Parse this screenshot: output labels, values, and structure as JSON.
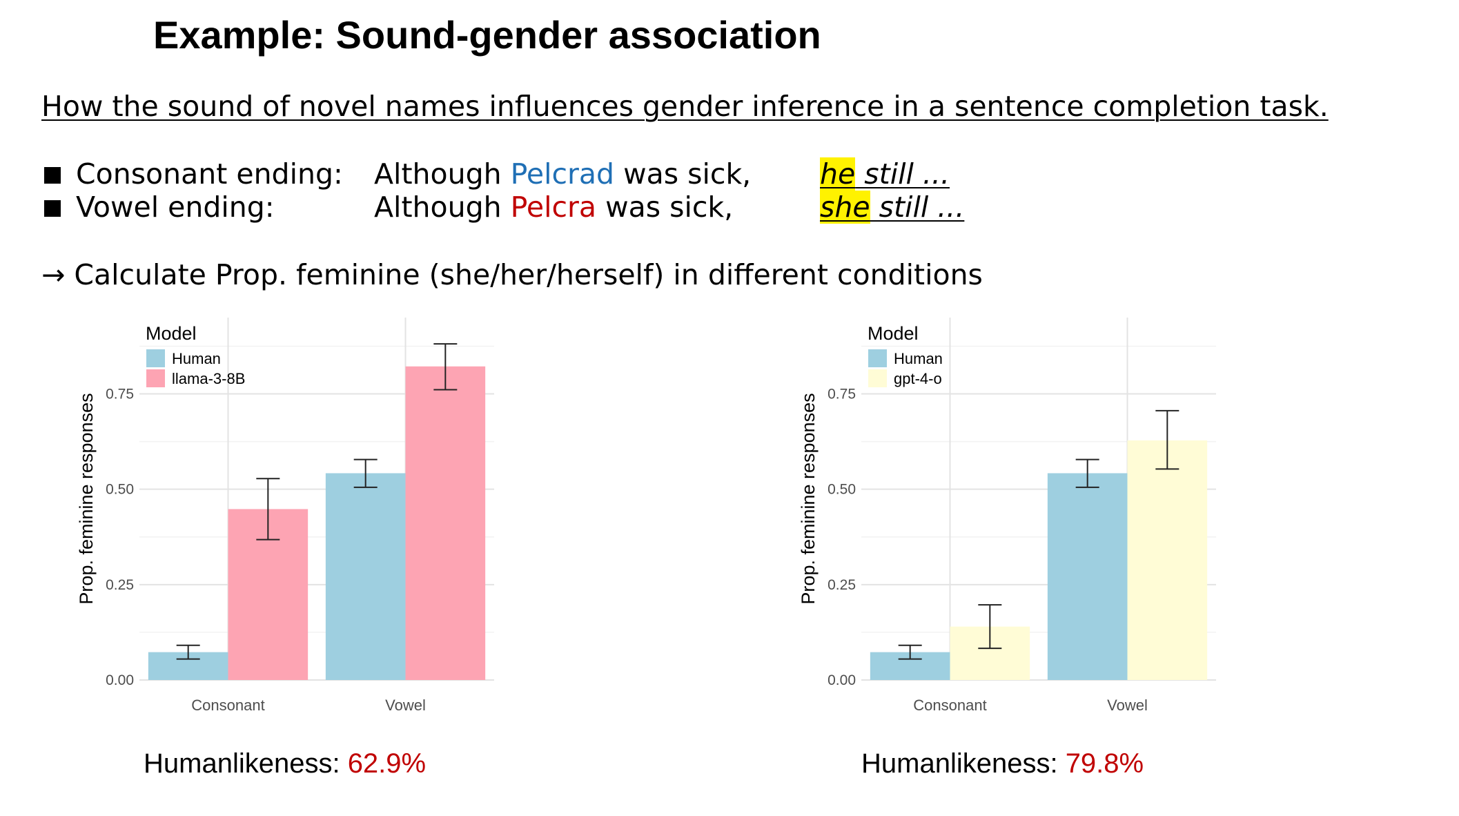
{
  "title": "Example: Sound-gender association",
  "subtitle": "How the sound of novel names influences gender inference in a sentence completion task.",
  "examples": [
    {
      "condition": "Consonant ending:",
      "pre": "Although ",
      "name": "Pelcrad",
      "post": " was sick,",
      "pronoun": "he",
      "rest": " still ...",
      "name_color": "#1f6fb5"
    },
    {
      "condition": "Vowel ending:",
      "pre": "Although ",
      "name": "Pelcra",
      "post": " was sick,",
      "pronoun": "she",
      "rest": " still ...",
      "name_color": "#c00000"
    }
  ],
  "calc_line": "→ Calculate Prop. feminine (she/her/herself) in different conditions",
  "highlight_color": "#fff200",
  "humanlikeness": [
    {
      "label": "Humanlikeness: ",
      "value": "62.9%",
      "value_color": "#c00000"
    },
    {
      "label": "Humanlikeness: ",
      "value": "79.8%",
      "value_color": "#c00000"
    }
  ],
  "chart_data": [
    {
      "type": "bar",
      "title": "",
      "xlabel": "",
      "ylabel": "Prop. feminine responses",
      "ylim": [
        0,
        0.95
      ],
      "yticks": [
        0,
        0.25,
        0.5,
        0.75
      ],
      "ytick_labels": [
        "0.00",
        "0.25",
        "0.50",
        "0.75"
      ],
      "categories": [
        "Consonant",
        "Vowel"
      ],
      "legend_title": "Model",
      "legend_position": "top-left",
      "grid": true,
      "series": [
        {
          "name": "Human",
          "color": "#9ecfe0",
          "values": [
            0.073,
            0.542
          ],
          "err_low": [
            0.055,
            0.505
          ],
          "err_high": [
            0.091,
            0.578
          ]
        },
        {
          "name": "llama-3-8B",
          "color": "#fda4b3",
          "values": [
            0.448,
            0.822
          ],
          "err_low": [
            0.368,
            0.761
          ],
          "err_high": [
            0.528,
            0.881
          ]
        }
      ]
    },
    {
      "type": "bar",
      "title": "",
      "xlabel": "",
      "ylabel": "Prop. feminine responses",
      "ylim": [
        0,
        0.95
      ],
      "yticks": [
        0,
        0.25,
        0.5,
        0.75
      ],
      "ytick_labels": [
        "0.00",
        "0.25",
        "0.50",
        "0.75"
      ],
      "categories": [
        "Consonant",
        "Vowel"
      ],
      "legend_title": "Model",
      "legend_position": "top-left",
      "grid": true,
      "series": [
        {
          "name": "Human",
          "color": "#9ecfe0",
          "values": [
            0.073,
            0.542
          ],
          "err_low": [
            0.055,
            0.505
          ],
          "err_high": [
            0.091,
            0.578
          ]
        },
        {
          "name": "gpt-4-o",
          "color": "#fffcd6",
          "values": [
            0.14,
            0.628
          ],
          "err_low": [
            0.083,
            0.553
          ],
          "err_high": [
            0.197,
            0.706
          ]
        }
      ]
    }
  ]
}
